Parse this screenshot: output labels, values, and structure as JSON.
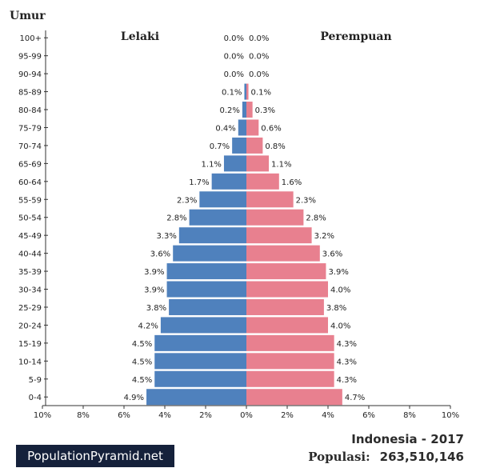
{
  "chart_data": {
    "type": "bar",
    "orientation": "horizontal",
    "ylabel": "Umur",
    "left_label": "Lelaki",
    "right_label": "Perempuan",
    "categories": [
      "100+",
      "95-99",
      "90-94",
      "85-89",
      "80-84",
      "75-79",
      "70-74",
      "65-69",
      "60-64",
      "55-59",
      "50-54",
      "45-49",
      "40-44",
      "35-39",
      "30-34",
      "25-29",
      "20-24",
      "15-19",
      "10-14",
      "5-9",
      "0-4"
    ],
    "series": [
      {
        "name": "Lelaki",
        "values": [
          0.0,
          0.0,
          0.0,
          0.1,
          0.2,
          0.4,
          0.7,
          1.1,
          1.7,
          2.3,
          2.8,
          3.3,
          3.6,
          3.9,
          3.9,
          3.8,
          4.2,
          4.5,
          4.5,
          4.5,
          4.9
        ],
        "labels": [
          "0.0%",
          "0.0%",
          "0.0%",
          "0.1%",
          "0.2%",
          "0.4%",
          "0.7%",
          "1.1%",
          "1.7%",
          "2.3%",
          "2.8%",
          "3.3%",
          "3.6%",
          "3.9%",
          "3.9%",
          "3.8%",
          "4.2%",
          "4.5%",
          "4.5%",
          "4.5%",
          "4.9%"
        ]
      },
      {
        "name": "Perempuan",
        "values": [
          0.0,
          0.0,
          0.0,
          0.1,
          0.3,
          0.6,
          0.8,
          1.1,
          1.6,
          2.3,
          2.8,
          3.2,
          3.6,
          3.9,
          4.0,
          3.8,
          4.0,
          4.3,
          4.3,
          4.3,
          4.7
        ],
        "labels": [
          "0.0%",
          "0.0%",
          "0.0%",
          "0.1%",
          "0.3%",
          "0.6%",
          "0.8%",
          "1.1%",
          "1.6%",
          "2.3%",
          "2.8%",
          "3.2%",
          "3.6%",
          "3.9%",
          "4.0%",
          "3.8%",
          "4.0%",
          "4.3%",
          "4.3%",
          "4.3%",
          "4.7%"
        ]
      }
    ],
    "xlim": [
      -10,
      10
    ],
    "xticks": [
      -10,
      -8,
      -6,
      -4,
      -2,
      0,
      2,
      4,
      6,
      8,
      10
    ],
    "xtick_labels": [
      "10%",
      "8%",
      "6%",
      "4%",
      "2%",
      "0%",
      "2%",
      "4%",
      "6%",
      "8%",
      "10%"
    ],
    "colors": {
      "male": "#4f81bd",
      "female": "#e8808f"
    }
  },
  "brand": "PopulationPyramid.net",
  "footer": {
    "title": "Indonesia - 2017",
    "population_label": "Populasi:",
    "population_value": "263,510,146"
  }
}
